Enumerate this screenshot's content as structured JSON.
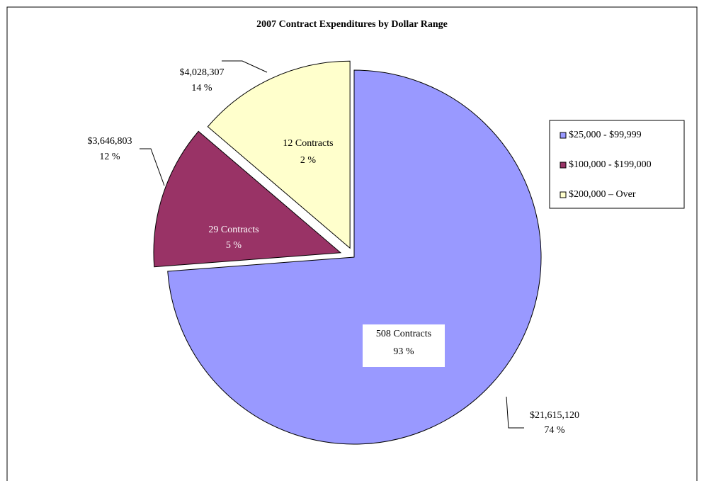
{
  "chart_data": {
    "type": "pie",
    "title": "2007 Contract Expenditures by Dollar Range",
    "categories": [
      "$25,000 - $99,999",
      "$100,000 - $199,000",
      "$200,000 – Over"
    ],
    "values": [
      21615120,
      3646803,
      4028307
    ],
    "value_labels": [
      "$21,615,120",
      "$3,646,803",
      "$4,028,307"
    ],
    "percent_labels": [
      "74 %",
      "12 %",
      "14 %"
    ],
    "contract_labels": [
      "508 Contracts",
      "29 Contracts",
      "12 Contracts"
    ],
    "contract_share_labels": [
      "93 %",
      "5 %",
      "2 %"
    ],
    "colors": [
      "#9999ff",
      "#993366",
      "#ffffcc"
    ],
    "legend": "right"
  }
}
